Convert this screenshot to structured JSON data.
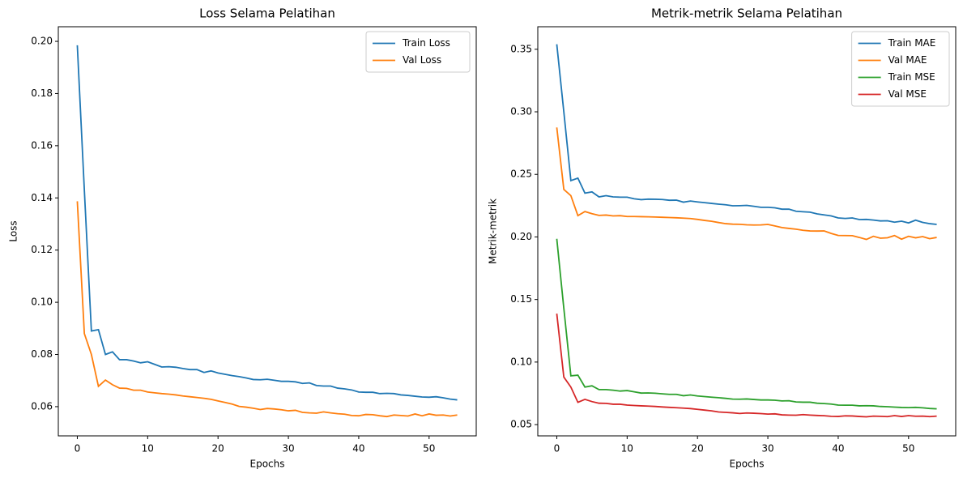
{
  "chart_data": [
    {
      "type": "line",
      "title": "Loss Selama Pelatihan",
      "xlabel": "Epochs",
      "ylabel": "Loss",
      "x": [
        0,
        1,
        2,
        3,
        4,
        5,
        6,
        7,
        8,
        9,
        10,
        11,
        12,
        13,
        14,
        15,
        16,
        17,
        18,
        19,
        20,
        21,
        22,
        23,
        24,
        25,
        26,
        27,
        28,
        29,
        30,
        31,
        32,
        33,
        34,
        35,
        36,
        37,
        38,
        39,
        40,
        41,
        42,
        43,
        44,
        45,
        46,
        47,
        48,
        49,
        50,
        51,
        52,
        53,
        54
      ],
      "series": [
        {
          "name": "Train Loss",
          "color": "#1f77b4",
          "values": [
            0.1985,
            0.143,
            0.089,
            0.0895,
            0.08,
            0.081,
            0.078,
            0.078,
            0.0775,
            0.0768,
            0.0772,
            0.0762,
            0.0752,
            0.0753,
            0.0751,
            0.0746,
            0.0742,
            0.0742,
            0.0731,
            0.0737,
            0.0729,
            0.0724,
            0.0719,
            0.0715,
            0.071,
            0.0704,
            0.0703,
            0.0705,
            0.0701,
            0.0697,
            0.0697,
            0.0695,
            0.0689,
            0.0691,
            0.0681,
            0.0679,
            0.0679,
            0.0671,
            0.0668,
            0.0664,
            0.0656,
            0.0655,
            0.0655,
            0.065,
            0.0651,
            0.065,
            0.0645,
            0.0643,
            0.064,
            0.0637,
            0.0636,
            0.0638,
            0.0634,
            0.0629,
            0.0626
          ]
        },
        {
          "name": "Val Loss",
          "color": "#ff7f0e",
          "values": [
            0.1387,
            0.088,
            0.08,
            0.0678,
            0.0702,
            0.0684,
            0.0671,
            0.067,
            0.0663,
            0.0663,
            0.0656,
            0.0653,
            0.065,
            0.0648,
            0.0645,
            0.0641,
            0.0638,
            0.0635,
            0.0632,
            0.0628,
            0.0622,
            0.0616,
            0.061,
            0.0601,
            0.0598,
            0.0594,
            0.0589,
            0.0593,
            0.0591,
            0.0588,
            0.0584,
            0.0586,
            0.0578,
            0.0576,
            0.0575,
            0.058,
            0.0576,
            0.0573,
            0.0571,
            0.0566,
            0.0565,
            0.057,
            0.0569,
            0.0565,
            0.0562,
            0.0568,
            0.0566,
            0.0564,
            0.0572,
            0.0565,
            0.0572,
            0.0567,
            0.0568,
            0.0564,
            0.0568
          ]
        }
      ],
      "xlim": [
        -2.7,
        56.7
      ],
      "xticks": [
        0,
        10,
        20,
        30,
        40,
        50
      ],
      "ylim": [
        0.0488,
        0.2056
      ],
      "yticks": [
        {
          "value": 0.06,
          "label": "0.06"
        },
        {
          "value": 0.08,
          "label": "0.08"
        },
        {
          "value": 0.1,
          "label": "0.10"
        },
        {
          "value": 0.12,
          "label": "0.12"
        },
        {
          "value": 0.14,
          "label": "0.14"
        },
        {
          "value": 0.16,
          "label": "0.16"
        },
        {
          "value": 0.18,
          "label": "0.18"
        },
        {
          "value": 0.2,
          "label": "0.20"
        }
      ],
      "legend": "upper right"
    },
    {
      "type": "line",
      "title": "Metrik-metrik Selama Pelatihan",
      "xlabel": "Epochs",
      "ylabel": "Metrik-metrik",
      "x": [
        0,
        1,
        2,
        3,
        4,
        5,
        6,
        7,
        8,
        9,
        10,
        11,
        12,
        13,
        14,
        15,
        16,
        17,
        18,
        19,
        20,
        21,
        22,
        23,
        24,
        25,
        26,
        27,
        28,
        29,
        30,
        31,
        32,
        33,
        34,
        35,
        36,
        37,
        38,
        39,
        40,
        41,
        42,
        43,
        44,
        45,
        46,
        47,
        48,
        49,
        50,
        51,
        52,
        53,
        54
      ],
      "series": [
        {
          "name": "Train MAE",
          "color": "#1f77b4",
          "values": [
            0.354,
            0.3,
            0.245,
            0.247,
            0.235,
            0.236,
            0.232,
            0.233,
            0.232,
            0.2318,
            0.2318,
            0.2305,
            0.2298,
            0.2302,
            0.2301,
            0.2299,
            0.2293,
            0.2294,
            0.2278,
            0.2287,
            0.228,
            0.2274,
            0.2268,
            0.2262,
            0.2257,
            0.2249,
            0.225,
            0.2252,
            0.2245,
            0.2237,
            0.2237,
            0.2233,
            0.2222,
            0.2222,
            0.2205,
            0.2201,
            0.2198,
            0.2184,
            0.2176,
            0.2168,
            0.2152,
            0.2148,
            0.2152,
            0.2139,
            0.214,
            0.2135,
            0.2128,
            0.2129,
            0.2118,
            0.2126,
            0.2112,
            0.2134,
            0.2116,
            0.2106,
            0.21
          ]
        },
        {
          "name": "Val MAE",
          "color": "#ff7f0e",
          "values": [
            0.2875,
            0.238,
            0.233,
            0.217,
            0.2203,
            0.2186,
            0.2172,
            0.2175,
            0.2168,
            0.217,
            0.2163,
            0.2163,
            0.2162,
            0.2161,
            0.2159,
            0.2157,
            0.2155,
            0.2153,
            0.215,
            0.2147,
            0.214,
            0.2132,
            0.2125,
            0.2115,
            0.2106,
            0.2102,
            0.2101,
            0.2097,
            0.2095,
            0.2096,
            0.21,
            0.2088,
            0.2075,
            0.2068,
            0.2062,
            0.2053,
            0.2048,
            0.2047,
            0.2048,
            0.2028,
            0.2012,
            0.2011,
            0.201,
            0.1996,
            0.198,
            0.2005,
            0.199,
            0.1993,
            0.2011,
            0.1982,
            0.2005,
            0.1993,
            0.2003,
            0.1986,
            0.1996
          ]
        },
        {
          "name": "Train MSE",
          "color": "#2ca02c",
          "values": [
            0.1985,
            0.143,
            0.089,
            0.0895,
            0.08,
            0.081,
            0.078,
            0.078,
            0.0775,
            0.0768,
            0.0772,
            0.0762,
            0.0752,
            0.0753,
            0.0751,
            0.0746,
            0.0742,
            0.0742,
            0.0731,
            0.0737,
            0.0729,
            0.0724,
            0.0719,
            0.0715,
            0.071,
            0.0704,
            0.0703,
            0.0705,
            0.0701,
            0.0697,
            0.0697,
            0.0695,
            0.0689,
            0.0691,
            0.0681,
            0.0679,
            0.0679,
            0.0671,
            0.0668,
            0.0664,
            0.0656,
            0.0655,
            0.0655,
            0.065,
            0.0651,
            0.065,
            0.0645,
            0.0643,
            0.064,
            0.0637,
            0.0636,
            0.0638,
            0.0634,
            0.0629,
            0.0626
          ]
        },
        {
          "name": "Val MSE",
          "color": "#d62728",
          "values": [
            0.1387,
            0.088,
            0.08,
            0.0678,
            0.0702,
            0.0684,
            0.0671,
            0.067,
            0.0663,
            0.0663,
            0.0656,
            0.0653,
            0.065,
            0.0648,
            0.0645,
            0.0641,
            0.0638,
            0.0635,
            0.0632,
            0.0628,
            0.0622,
            0.0616,
            0.061,
            0.0601,
            0.0598,
            0.0594,
            0.0589,
            0.0593,
            0.0591,
            0.0588,
            0.0584,
            0.0586,
            0.0578,
            0.0576,
            0.0575,
            0.058,
            0.0576,
            0.0573,
            0.0571,
            0.0566,
            0.0565,
            0.057,
            0.0569,
            0.0565,
            0.0562,
            0.0568,
            0.0566,
            0.0564,
            0.0572,
            0.0565,
            0.0572,
            0.0567,
            0.0568,
            0.0564,
            0.0568
          ]
        }
      ],
      "xlim": [
        -2.7,
        56.7
      ],
      "xticks": [
        0,
        10,
        20,
        30,
        40,
        50
      ],
      "ylim": [
        0.041,
        0.368
      ],
      "yticks": [
        {
          "value": 0.05,
          "label": "0.05"
        },
        {
          "value": 0.1,
          "label": "0.10"
        },
        {
          "value": 0.15,
          "label": "0.15"
        },
        {
          "value": 0.2,
          "label": "0.20"
        },
        {
          "value": 0.25,
          "label": "0.25"
        },
        {
          "value": 0.3,
          "label": "0.30"
        },
        {
          "value": 0.35,
          "label": "0.35"
        }
      ],
      "legend": "upper right"
    }
  ]
}
